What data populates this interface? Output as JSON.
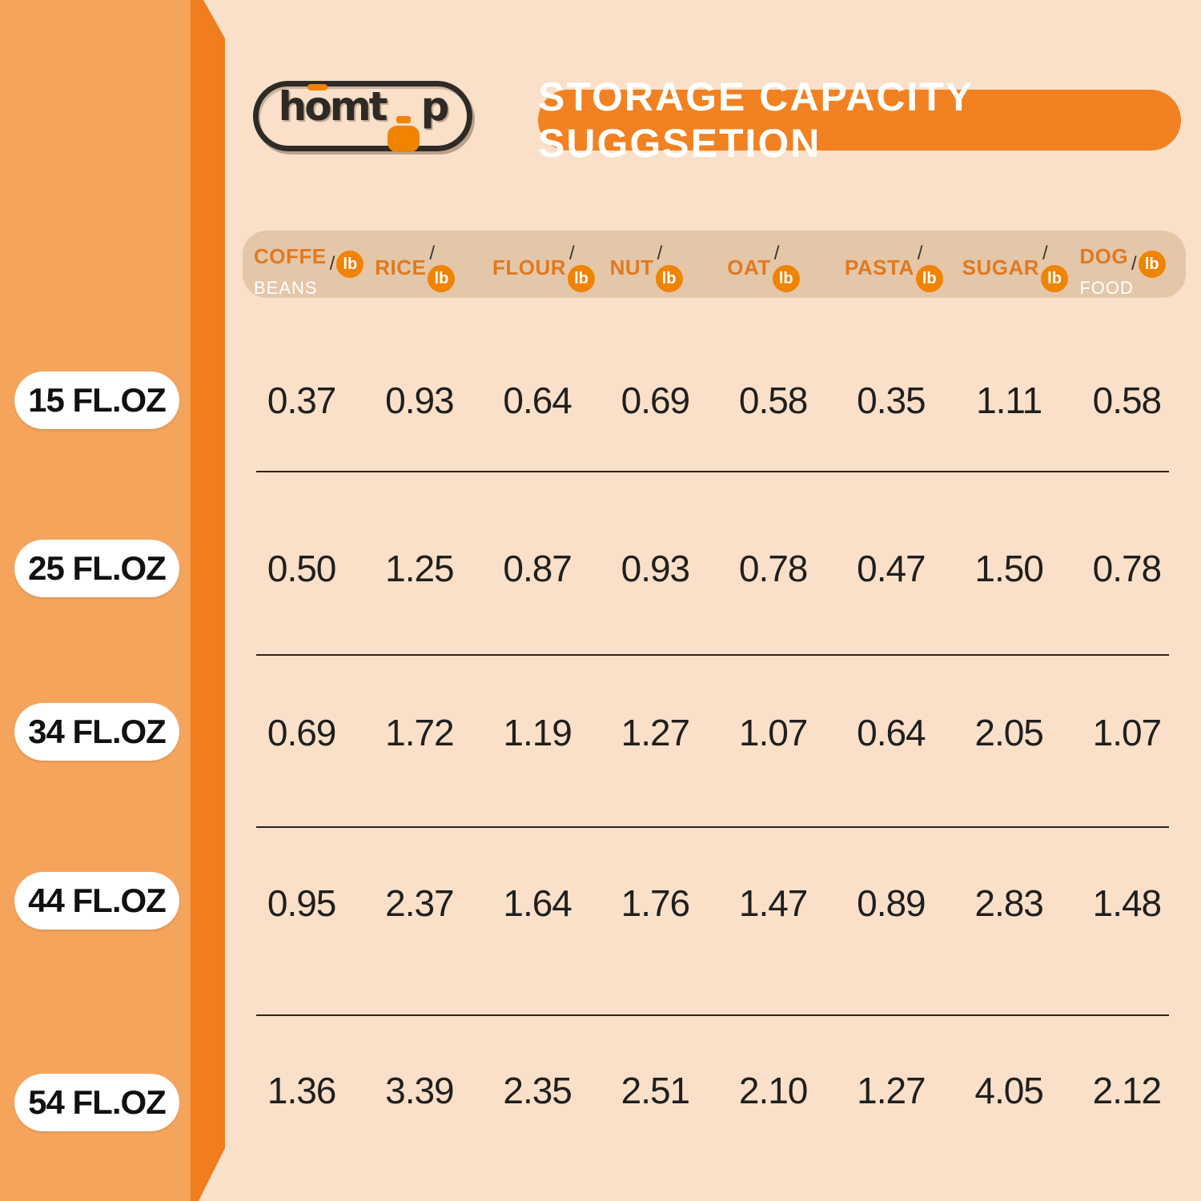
{
  "colors": {
    "pageBg": "#FAE0C8",
    "sideBand": "#F5A45C",
    "sideRibbon": "#F07D1E",
    "bannerOrange": "#F18121",
    "headerBand": "#E4C6A9",
    "headerOrange": "#E2791F",
    "unitBadge": "#F08300",
    "ink": "#1F1F1F",
    "logoInk": "#2E2A26",
    "white": "#FFFFFF"
  },
  "logo": {
    "p1": "h",
    "p2": "o",
    "p3": "mt",
    "p4": "p",
    "icon": "jar-icon"
  },
  "banner": {
    "title": "STORAGE CAPACITY SUGGSETION"
  },
  "chart_data": {
    "type": "table",
    "title": "STORAGE CAPACITY SUGGSETION",
    "unit_separator": "/",
    "columns": [
      {
        "name": "COFFE",
        "sub": "BEANS",
        "unit": "lb"
      },
      {
        "name": "RICE",
        "unit": "lb"
      },
      {
        "name": "FLOUR",
        "unit": "lb"
      },
      {
        "name": "NUT",
        "unit": "lb"
      },
      {
        "name": "OAT",
        "unit": "lb"
      },
      {
        "name": "PASTA",
        "unit": "lb"
      },
      {
        "name": "SUGAR",
        "unit": "lb"
      },
      {
        "name": "DOG",
        "sub": "FOOD",
        "unit": "lb"
      }
    ],
    "rows": [
      {
        "label": "15 FL.OZ",
        "values": [
          "0.37",
          "0.93",
          "0.64",
          "0.69",
          "0.58",
          "0.35",
          "1.11",
          "0.58"
        ]
      },
      {
        "label": "25 FL.OZ",
        "values": [
          "0.50",
          "1.25",
          "0.87",
          "0.93",
          "0.78",
          "0.47",
          "1.50",
          "0.78"
        ]
      },
      {
        "label": "34 FL.OZ",
        "values": [
          "0.69",
          "1.72",
          "1.19",
          "1.27",
          "1.07",
          "0.64",
          "2.05",
          "1.07"
        ]
      },
      {
        "label": "44 FL.OZ",
        "values": [
          "0.95",
          "2.37",
          "1.64",
          "1.76",
          "1.47",
          "0.89",
          "2.83",
          "1.48"
        ]
      },
      {
        "label": "54 FL.OZ",
        "values": [
          "1.36",
          "3.39",
          "2.35",
          "2.51",
          "2.10",
          "1.27",
          "4.05",
          "2.12"
        ]
      }
    ]
  }
}
